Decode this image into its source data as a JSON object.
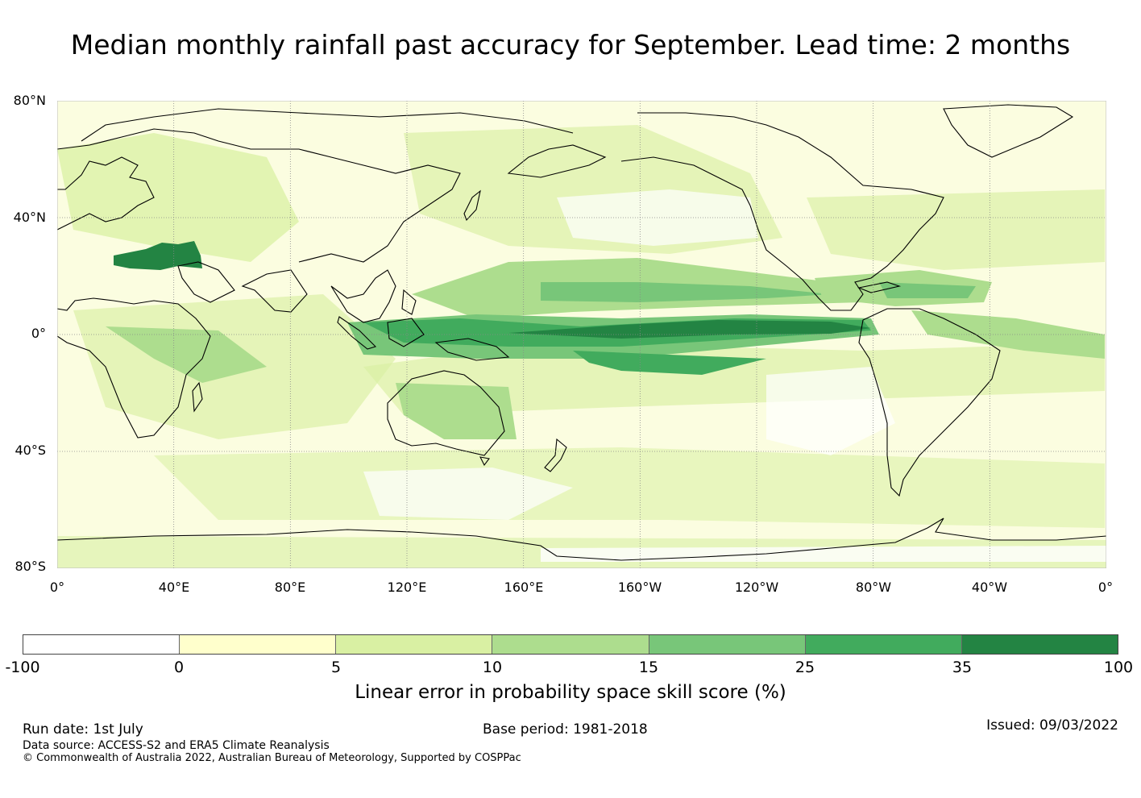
{
  "title": "Median monthly rainfall past accuracy for September. Lead time: 2 months",
  "map": {
    "lat_labels": [
      "80°N",
      "40°N",
      "0°",
      "40°S",
      "80°S"
    ],
    "lat_values": [
      80,
      40,
      0,
      -40,
      -80
    ],
    "lon_labels": [
      "0°",
      "40°E",
      "80°E",
      "120°E",
      "160°E",
      "160°W",
      "120°W",
      "80°W",
      "40°W",
      "0°"
    ],
    "lon_values": [
      0,
      40,
      80,
      120,
      160,
      200,
      240,
      280,
      320,
      360
    ],
    "lon_range": [
      0,
      360
    ],
    "lat_range": [
      -80,
      80
    ],
    "gridlines": "dotted",
    "coastline_color": "#000000"
  },
  "colorbar": {
    "ticks": [
      "-100",
      "0",
      "5",
      "10",
      "15",
      "25",
      "35",
      "100"
    ],
    "colors": [
      "#ffffff",
      "#ffffcc",
      "#d9f0a3",
      "#addd8e",
      "#78c679",
      "#41ab5d",
      "#238443"
    ],
    "label": "Linear error in probability space skill score (%)"
  },
  "footer": {
    "run_date": "Run date: 1st July",
    "base_period": "Base period: 1981-2018",
    "issued": "Issued: 09/03/2022",
    "data_source": "Data source: ACCESS-S2 and ERA5 Climate Reanalysis",
    "copyright": "© Commonwealth of Australia 2022, Australian Bureau of Meteorology, Supported by COSPPac"
  }
}
